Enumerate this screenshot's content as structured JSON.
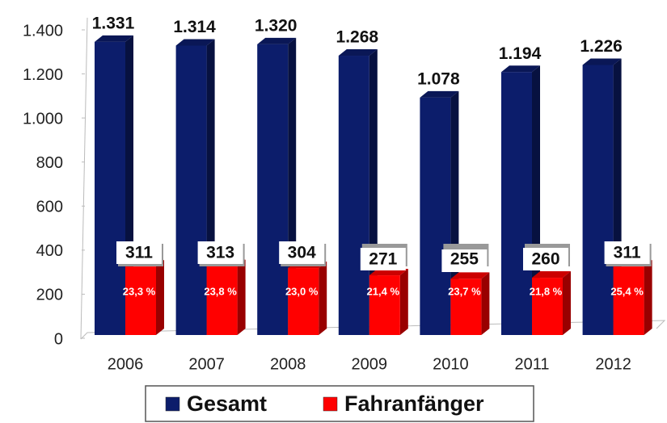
{
  "chart_data": {
    "type": "bar3d",
    "categories": [
      "2006",
      "2007",
      "2008",
      "2009",
      "2010",
      "2011",
      "2012"
    ],
    "series": [
      {
        "name": "Gesamt",
        "color": "#0c1d6b",
        "values": [
          1331,
          1314,
          1320,
          1268,
          1078,
          1194,
          1226
        ],
        "value_labels": [
          "1.331",
          "1.314",
          "1.320",
          "1.268",
          "1.078",
          "1.194",
          "1.226"
        ]
      },
      {
        "name": "Fahranfänger",
        "color": "#ff0000",
        "values": [
          311,
          313,
          304,
          271,
          255,
          260,
          311
        ],
        "share_labels": [
          "23,3 %",
          "23,8 %",
          "23,0 %",
          "21,4 %",
          "23,7 %",
          "21,8 %",
          "25,4 %"
        ]
      }
    ],
    "ylim": [
      0,
      1400
    ],
    "yticks": [
      0,
      200,
      400,
      600,
      800,
      {
        "value": 1000,
        "label": "1.000"
      },
      {
        "value": 1200,
        "label": "1.200"
      },
      {
        "value": 1400,
        "label": "1.400"
      }
    ],
    "legend": "bottom"
  }
}
